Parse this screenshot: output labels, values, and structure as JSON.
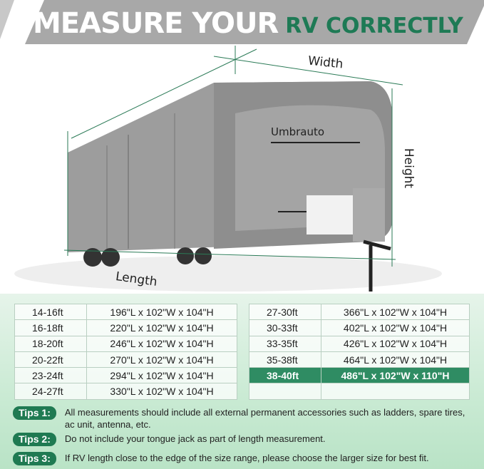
{
  "header": {
    "title_white": "MEASURE YOUR",
    "title_green": "RV CORRECTLY"
  },
  "illustration": {
    "brand": "Umbrauto",
    "labels": {
      "width": "Width",
      "height": "Height",
      "length": "Length"
    }
  },
  "sizes_left": [
    {
      "size": "14-16ft",
      "dims": "196\"L x 102\"W x 104\"H"
    },
    {
      "size": "16-18ft",
      "dims": "220\"L x 102\"W x 104\"H"
    },
    {
      "size": "18-20ft",
      "dims": "246\"L x 102\"W x 104\"H"
    },
    {
      "size": "20-22ft",
      "dims": "270\"L x 102\"W x 104\"H"
    },
    {
      "size": "23-24ft",
      "dims": "294\"L x 102\"W x 104\"H"
    },
    {
      "size": "24-27ft",
      "dims": "330\"L x 102\"W x 104\"H"
    }
  ],
  "sizes_right": [
    {
      "size": "27-30ft",
      "dims": "366\"L x 102\"W x 104\"H"
    },
    {
      "size": "30-33ft",
      "dims": "402\"L x 102\"W x 104\"H"
    },
    {
      "size": "33-35ft",
      "dims": "426\"L x 102\"W x 104\"H"
    },
    {
      "size": "35-38ft",
      "dims": "464\"L x 102\"W x 104\"H"
    },
    {
      "size": "38-40ft",
      "dims": "486\"L x 102\"W x 110\"H",
      "highlighted": true
    },
    {
      "size": "",
      "dims": ""
    }
  ],
  "tips": [
    {
      "label": "Tips 1:",
      "text": "All measurements should include all external permanent accessories such as ladders, spare tires, ac unit, antenna, etc."
    },
    {
      "label": "Tips 2:",
      "text": "Do not include your tongue jack as part of length measurement."
    },
    {
      "label": "Tips 3:",
      "text": "If RV length close to the edge of the size range, please choose the larger size for best fit."
    }
  ],
  "colors": {
    "accent": "#1e7a55",
    "highlight": "#2f8c63",
    "banner": "#a9a9a9"
  }
}
